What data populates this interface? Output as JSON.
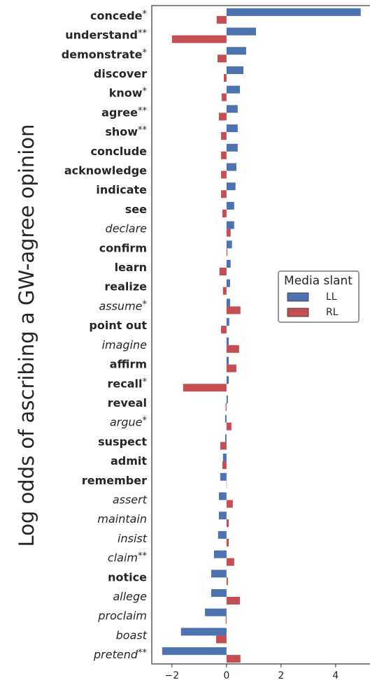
{
  "chart_data": {
    "type": "barh",
    "y_label": "Log odds of ascribing a GW-agree opinion",
    "categories": [
      {
        "label": "concede",
        "stars": "*",
        "style": "bold"
      },
      {
        "label": "understand",
        "stars": "**",
        "style": "bold"
      },
      {
        "label": "demonstrate",
        "stars": "*",
        "style": "bold"
      },
      {
        "label": "discover",
        "style": "bold"
      },
      {
        "label": "know",
        "stars": "*",
        "style": "bold"
      },
      {
        "label": "agree",
        "stars": "**",
        "style": "bold"
      },
      {
        "label": "show",
        "stars": "**",
        "style": "bold"
      },
      {
        "label": "conclude",
        "style": "bold"
      },
      {
        "label": "acknowledge",
        "style": "bold"
      },
      {
        "label": "indicate",
        "style": "bold"
      },
      {
        "label": "see",
        "style": "bold"
      },
      {
        "label": "declare",
        "style": "italic"
      },
      {
        "label": "confirm",
        "style": "bold"
      },
      {
        "label": "learn",
        "style": "bold"
      },
      {
        "label": "realize",
        "style": "bold"
      },
      {
        "label": "assume",
        "stars": "*",
        "style": "italic"
      },
      {
        "label": "point out",
        "style": "bold"
      },
      {
        "label": "imagine",
        "style": "italic"
      },
      {
        "label": "affirm",
        "style": "bold"
      },
      {
        "label": "recall",
        "stars": "*",
        "style": "bold"
      },
      {
        "label": "reveal",
        "style": "bold"
      },
      {
        "label": "argue",
        "stars": "*",
        "style": "italic"
      },
      {
        "label": "suspect",
        "style": "bold"
      },
      {
        "label": "admit",
        "style": "bold"
      },
      {
        "label": "remember",
        "style": "bold"
      },
      {
        "label": "assert",
        "style": "italic"
      },
      {
        "label": "maintain",
        "style": "italic"
      },
      {
        "label": "insist",
        "style": "italic"
      },
      {
        "label": "claim",
        "stars": "**",
        "style": "italic"
      },
      {
        "label": "notice",
        "style": "bold"
      },
      {
        "label": "allege",
        "style": "italic"
      },
      {
        "label": "proclaim",
        "style": "italic"
      },
      {
        "label": "boast",
        "style": "italic"
      },
      {
        "label": "pretend",
        "stars": "**",
        "style": "italic"
      }
    ],
    "series": [
      {
        "name": "LL",
        "color": "#4c72b0",
        "values": [
          4.92,
          1.08,
          0.72,
          0.62,
          0.49,
          0.41,
          0.41,
          0.41,
          0.36,
          0.33,
          0.28,
          0.28,
          0.2,
          0.15,
          0.13,
          0.13,
          0.1,
          0.08,
          0.08,
          0.08,
          0.05,
          -0.05,
          -0.05,
          -0.13,
          -0.23,
          -0.28,
          -0.28,
          -0.31,
          -0.46,
          -0.56,
          -0.56,
          -0.79,
          -1.67,
          -2.36
        ]
      },
      {
        "name": "RL",
        "color": "#c44e52",
        "values": [
          -0.36,
          -2.0,
          -0.33,
          -0.1,
          -0.18,
          -0.28,
          -0.2,
          -0.2,
          -0.2,
          -0.2,
          -0.15,
          0.15,
          0.03,
          -0.26,
          -0.13,
          0.51,
          -0.2,
          0.46,
          0.36,
          -1.59,
          -0.03,
          0.18,
          -0.23,
          -0.15,
          0.01,
          0.23,
          0.08,
          0.08,
          0.28,
          0.05,
          0.49,
          -0.03,
          -0.38,
          0.51
        ]
      }
    ],
    "xlim": [
      -2.74,
      5.26
    ],
    "xticks": [
      {
        "value": -2,
        "label": "−2"
      },
      0,
      2,
      4
    ],
    "legend": {
      "title": "Media slant",
      "position": "right"
    }
  }
}
